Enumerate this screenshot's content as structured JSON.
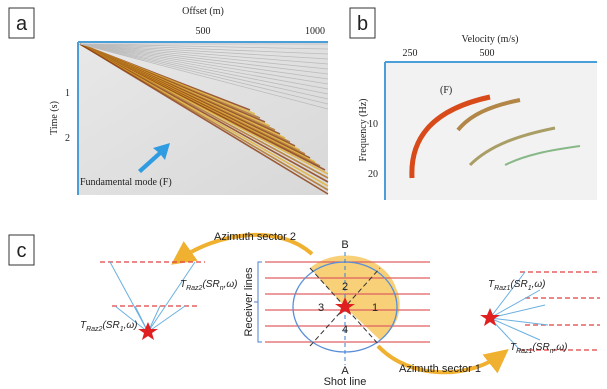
{
  "panel_a": {
    "label": "a",
    "x_label": "Offset (m)",
    "x_ticks": [
      "500",
      "1000"
    ],
    "y_label": "Time (s)",
    "y_ticks": [
      "1",
      "2"
    ],
    "annotation": "Fundamental mode (F)"
  },
  "panel_b": {
    "label": "b",
    "x_label": "Velocity (m/s)",
    "x_ticks": [
      "250",
      "500"
    ],
    "y_label": "Frequency (Hz)",
    "y_ticks": [
      "10",
      "20"
    ],
    "annotation": "(F)"
  },
  "panel_c": {
    "label": "c",
    "sector_2": "Azimuth sector 2",
    "sector_1": "Azimuth sector 1",
    "receiver_lines": "Receiver lines",
    "shot_line": "Shot line",
    "top_point": "B",
    "bottom_point": "A",
    "sector_numbers": [
      "1",
      "2",
      "3",
      "4"
    ],
    "left_labels": [
      [
        "T",
        "Raz2",
        "(SR",
        "n",
        ",ω)"
      ],
      [
        "T",
        "Raz2",
        "(SR",
        "1",
        ",ω)"
      ]
    ],
    "right_labels": [
      [
        "T",
        "Raz1",
        "(SR",
        "1",
        ",ω)"
      ],
      [
        "T",
        "Raz1",
        "(SR",
        "n",
        ",ω)"
      ]
    ]
  }
}
